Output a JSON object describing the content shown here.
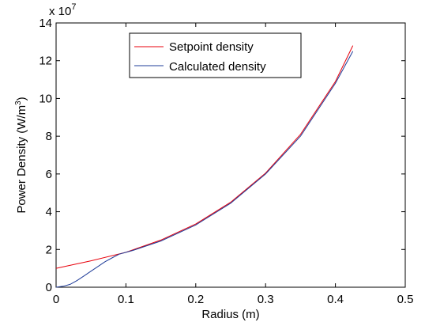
{
  "chart_data": {
    "type": "line",
    "title": "",
    "xlabel": "Radius (m)",
    "ylabel_main": "Power Density (W/m",
    "ylabel_sup": "3",
    "ylabel_close": ")",
    "y_multiplier_base": "x 10",
    "y_multiplier_exp": "7",
    "xlim": [
      0,
      0.5
    ],
    "ylim": [
      0,
      14
    ],
    "x_ticks": [
      "0",
      "0.1",
      "0.2",
      "0.3",
      "0.4",
      "0.5"
    ],
    "y_ticks": [
      "0",
      "2",
      "4",
      "6",
      "8",
      "10",
      "12",
      "14"
    ],
    "grid": false,
    "legend_position": "top-center",
    "series": [
      {
        "name": "Setpoint density",
        "color": "#e8000b",
        "x": [
          0,
          0.05,
          0.1,
          0.15,
          0.2,
          0.25,
          0.3,
          0.35,
          0.4,
          0.425
        ],
        "y": [
          1.0,
          1.4,
          1.85,
          2.5,
          3.35,
          4.5,
          6.05,
          8.1,
          10.9,
          12.8
        ]
      },
      {
        "name": "Calculated density",
        "color": "#1f3c99",
        "x": [
          0,
          0.01,
          0.02,
          0.03,
          0.04,
          0.05,
          0.06,
          0.07,
          0.08,
          0.09,
          0.1,
          0.11,
          0.15,
          0.2,
          0.25,
          0.3,
          0.35,
          0.4,
          0.425
        ],
        "y": [
          0.0,
          0.05,
          0.15,
          0.35,
          0.6,
          0.85,
          1.1,
          1.35,
          1.55,
          1.75,
          1.85,
          1.95,
          2.45,
          3.3,
          4.45,
          6.0,
          8.0,
          10.8,
          12.5
        ]
      }
    ]
  }
}
